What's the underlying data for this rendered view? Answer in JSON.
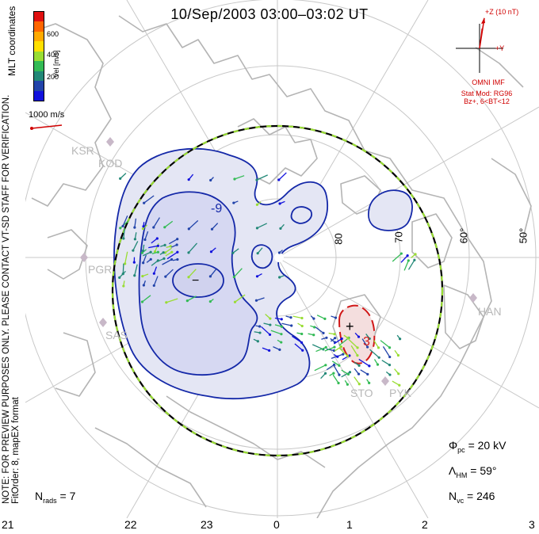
{
  "title": "10/Sep/2003 03:00–03:02 UT",
  "note_line1": "NOTE: FOR PREVIEW PURPOSES ONLY. PLEASE CONTACT VT-SD STAFF FOR VERIFICATION.",
  "note_line2": "FitOrder: 8, mapEX format",
  "coords_label": "MLT coordinates",
  "colorbar": {
    "label": "Vel [m/s]",
    "ticks": [
      "200",
      "400",
      "600"
    ],
    "colors": [
      "#e01010",
      "#ff6600",
      "#ffaa00",
      "#ffe000",
      "#99dd33",
      "#33bb55",
      "#228877",
      "#2244aa",
      "#1111dd"
    ]
  },
  "scale_vector": "1000 m/s",
  "imf": {
    "title": "+Z (10 nT)",
    "y_label": "+Y",
    "source": "OMNI IMF"
  },
  "stat_model": {
    "line1": "Stat Mod: RG96",
    "line2": "Bz+, 6<BT<12"
  },
  "sites": [
    {
      "code": "KSR"
    },
    {
      "code": "KOD"
    },
    {
      "code": "PGR"
    },
    {
      "code": "SAS"
    },
    {
      "code": "HAN"
    },
    {
      "code": "STO"
    },
    {
      "code": "PYK"
    }
  ],
  "latitudes": [
    "80",
    "70",
    "60°",
    "50°"
  ],
  "mlt_labels": [
    "21",
    "22",
    "23",
    "0",
    "1",
    "2",
    "3"
  ],
  "contours": {
    "neg": "-9",
    "pos": "3",
    "min_mark": "−",
    "max_mark": "+"
  },
  "stats": {
    "phi_pc_sym": "Φ",
    "phi_pc_sub": "pc",
    "phi_pc_val": "= 20 kV",
    "lambda_sym": "Λ",
    "lambda_sub": "HM",
    "lambda_val": "= 59°",
    "nvc_sym": "N",
    "nvc_sub": "vc",
    "nvc_val": "= 246",
    "nrads_sym": "N",
    "nrads_sub": "rads",
    "nrads_val": "= 7"
  }
}
